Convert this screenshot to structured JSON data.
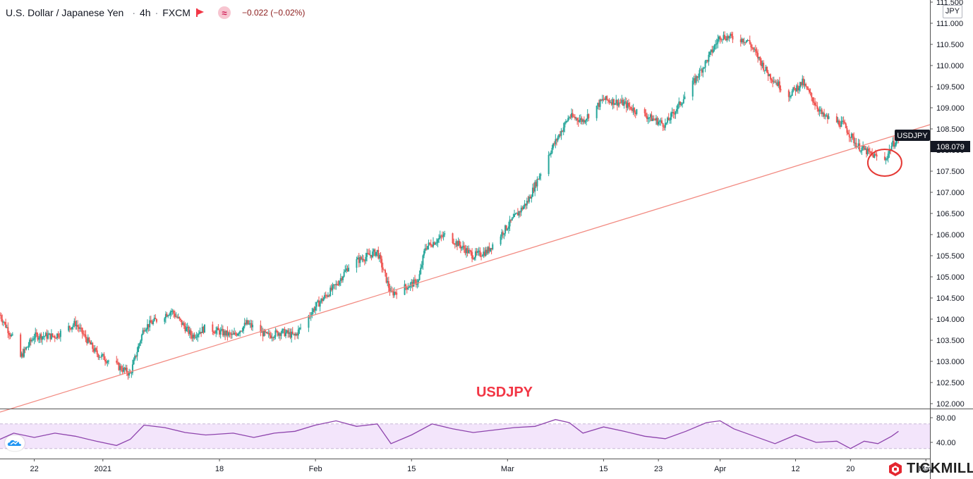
{
  "header": {
    "symbol": "U.S. Dollar / Japanese Yen",
    "interval": "4h",
    "exchange": "FXCM",
    "change": "−0.022 (−0.02%)"
  },
  "currency_label": "JPY",
  "brand": {
    "name": "TICKMILL"
  },
  "colors": {
    "up": "#26a69a",
    "down": "#ef5350",
    "trendline": "#f28b82",
    "rsi": "#8e44ad",
    "rsi_fill": "#f3e5fb",
    "annotation": "#f23645",
    "logo_red": "#e4262f"
  },
  "chart_data": {
    "type": "candlestick",
    "annotation": "USDJPY",
    "price_axis": {
      "ylim": [
        101.9,
        111.6
      ],
      "ticks": [
        "111.500",
        "111.000",
        "110.500",
        "110.000",
        "109.500",
        "109.000",
        "108.500",
        "108.000",
        "107.500",
        "107.000",
        "106.500",
        "106.000",
        "105.500",
        "105.000",
        "104.500",
        "104.000",
        "103.500",
        "103.000",
        "102.500",
        "102.000"
      ],
      "symbol_label": "USDJPY",
      "last_price": "108.079"
    },
    "time_axis": {
      "labels": [
        "22",
        "2021",
        "18",
        "Feb",
        "15",
        "Mar",
        "15",
        "23",
        "Apr",
        "12",
        "20",
        "May"
      ]
    },
    "anchors": [
      [
        "2020-12-17",
        104.1
      ],
      [
        "2020-12-19",
        103.5
      ],
      [
        "2020-12-20",
        103.1
      ],
      [
        "2020-12-22",
        103.6
      ],
      [
        "2020-12-25",
        103.6
      ],
      [
        "2020-12-28",
        103.9
      ],
      [
        "2020-12-31",
        103.2
      ],
      [
        "2021-01-03",
        102.9
      ],
      [
        "2021-01-05",
        102.7
      ],
      [
        "2021-01-07",
        103.8
      ],
      [
        "2021-01-09",
        104.0
      ],
      [
        "2021-01-11",
        104.2
      ],
      [
        "2021-01-14",
        103.6
      ],
      [
        "2021-01-16",
        103.8
      ],
      [
        "2021-01-20",
        103.6
      ],
      [
        "2021-01-22",
        103.9
      ],
      [
        "2021-01-25",
        103.6
      ],
      [
        "2021-01-27",
        103.7
      ],
      [
        "2021-01-29",
        103.6
      ],
      [
        "2021-02-01",
        104.3
      ],
      [
        "2021-02-04",
        104.8
      ],
      [
        "2021-02-06",
        105.3
      ],
      [
        "2021-02-10",
        105.6
      ],
      [
        "2021-02-12",
        104.6
      ],
      [
        "2021-02-16",
        104.9
      ],
      [
        "2021-02-17",
        105.7
      ],
      [
        "2021-02-20",
        106.0
      ],
      [
        "2021-02-24",
        105.5
      ],
      [
        "2021-02-26",
        105.6
      ],
      [
        "2021-03-01",
        106.2
      ],
      [
        "2021-03-04",
        106.8
      ],
      [
        "2021-03-07",
        107.9
      ],
      [
        "2021-03-10",
        108.8
      ],
      [
        "2021-03-12",
        108.7
      ],
      [
        "2021-03-15",
        109.2
      ],
      [
        "2021-03-18",
        109.1
      ],
      [
        "2021-03-20",
        108.9
      ],
      [
        "2021-03-24",
        108.6
      ],
      [
        "2021-03-27",
        109.3
      ],
      [
        "2021-03-30",
        110.1
      ],
      [
        "2021-04-01",
        110.7
      ],
      [
        "2021-04-05",
        110.6
      ],
      [
        "2021-04-08",
        109.8
      ],
      [
        "2021-04-11",
        109.3
      ],
      [
        "2021-04-13",
        109.6
      ],
      [
        "2021-04-16",
        108.8
      ],
      [
        "2021-04-19",
        108.6
      ],
      [
        "2021-04-21",
        108.1
      ],
      [
        "2021-04-23",
        107.9
      ],
      [
        "2021-04-25",
        107.75
      ],
      [
        "2021-04-26",
        108.1
      ],
      [
        "2021-04-27",
        108.3
      ]
    ],
    "trendline": [
      [
        "2020-12-17",
        101.8
      ],
      [
        "2021-05-07",
        108.6
      ]
    ],
    "highlight": {
      "date": "2021-04-25",
      "price": 107.7
    },
    "rsi": {
      "ticks": [
        "80.00",
        "40.00"
      ],
      "ylim": [
        20,
        95
      ],
      "bands": [
        70,
        30
      ],
      "series": [
        [
          "2020-12-17",
          45
        ],
        [
          "2020-12-19",
          55
        ],
        [
          "2020-12-22",
          48
        ],
        [
          "2020-12-25",
          55
        ],
        [
          "2020-12-28",
          50
        ],
        [
          "2020-12-31",
          42
        ],
        [
          "2021-01-03",
          35
        ],
        [
          "2021-01-05",
          45
        ],
        [
          "2021-01-07",
          68
        ],
        [
          "2021-01-10",
          64
        ],
        [
          "2021-01-13",
          56
        ],
        [
          "2021-01-16",
          52
        ],
        [
          "2021-01-20",
          55
        ],
        [
          "2021-01-23",
          48
        ],
        [
          "2021-01-26",
          55
        ],
        [
          "2021-01-29",
          58
        ],
        [
          "2021-02-01",
          68
        ],
        [
          "2021-02-04",
          75
        ],
        [
          "2021-02-07",
          66
        ],
        [
          "2021-02-10",
          70
        ],
        [
          "2021-02-12",
          38
        ],
        [
          "2021-02-15",
          52
        ],
        [
          "2021-02-18",
          70
        ],
        [
          "2021-02-21",
          62
        ],
        [
          "2021-02-24",
          56
        ],
        [
          "2021-02-27",
          60
        ],
        [
          "2021-03-02",
          64
        ],
        [
          "2021-03-05",
          66
        ],
        [
          "2021-03-08",
          77
        ],
        [
          "2021-03-10",
          72
        ],
        [
          "2021-03-12",
          55
        ],
        [
          "2021-03-15",
          65
        ],
        [
          "2021-03-18",
          58
        ],
        [
          "2021-03-21",
          50
        ],
        [
          "2021-03-24",
          46
        ],
        [
          "2021-03-27",
          58
        ],
        [
          "2021-03-30",
          72
        ],
        [
          "2021-04-01",
          75
        ],
        [
          "2021-04-03",
          62
        ],
        [
          "2021-04-06",
          50
        ],
        [
          "2021-04-09",
          38
        ],
        [
          "2021-04-12",
          52
        ],
        [
          "2021-04-15",
          40
        ],
        [
          "2021-04-18",
          42
        ],
        [
          "2021-04-20",
          30
        ],
        [
          "2021-04-22",
          42
        ],
        [
          "2021-04-24",
          38
        ],
        [
          "2021-04-26",
          50
        ],
        [
          "2021-04-27",
          58
        ]
      ]
    }
  }
}
